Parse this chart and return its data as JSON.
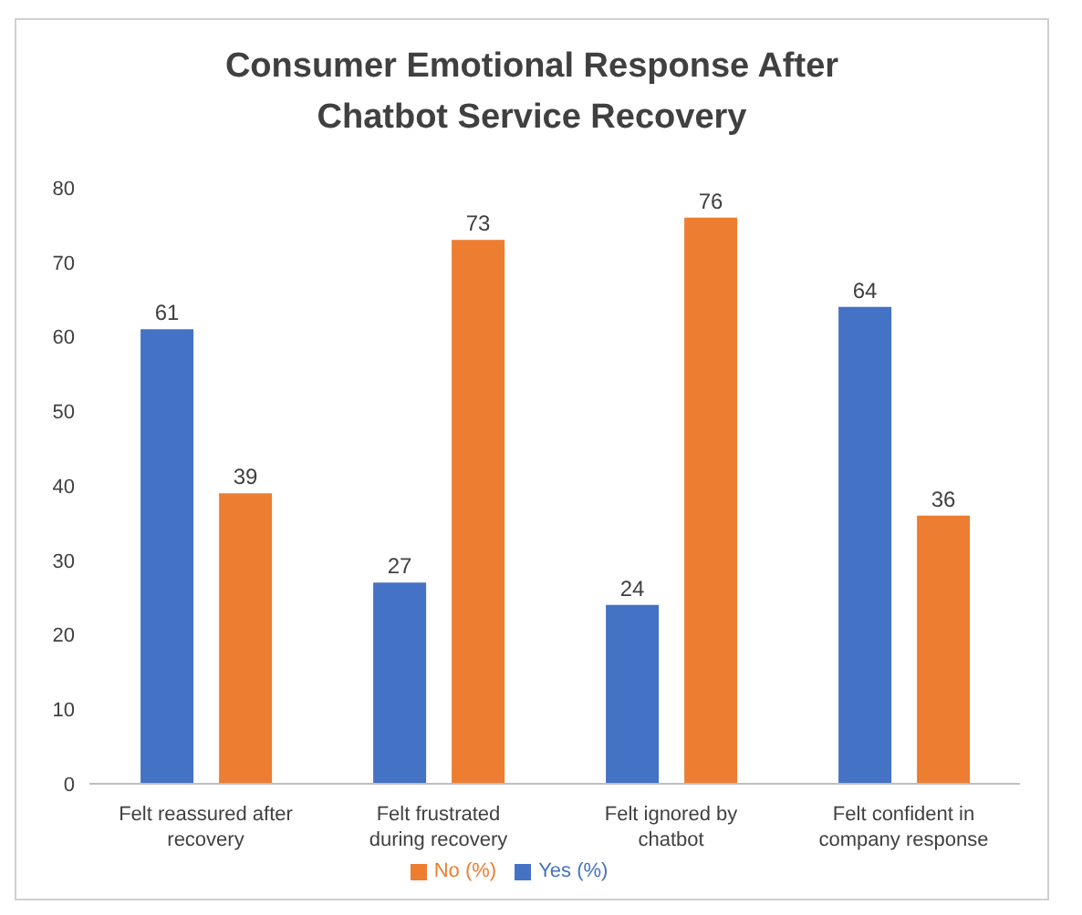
{
  "chart_data": {
    "type": "bar",
    "title": "Consumer Emotional Response After Chatbot Service Recovery",
    "categories": [
      "Felt reassured after recovery",
      "Felt frustrated during recovery",
      "Felt ignored by chatbot",
      "Felt confident in company response"
    ],
    "series": [
      {
        "name": "Yes (%)",
        "color": "#4472c4",
        "values": [
          61,
          27,
          24,
          64
        ]
      },
      {
        "name": "No (%)",
        "color": "#ed7d31",
        "values": [
          39,
          73,
          76,
          36
        ]
      }
    ],
    "ylim": [
      0,
      80
    ],
    "yticks": [
      0,
      10,
      20,
      30,
      40,
      50,
      60,
      70,
      80
    ],
    "data_labels": true,
    "grid": false,
    "legend": "bottom"
  }
}
